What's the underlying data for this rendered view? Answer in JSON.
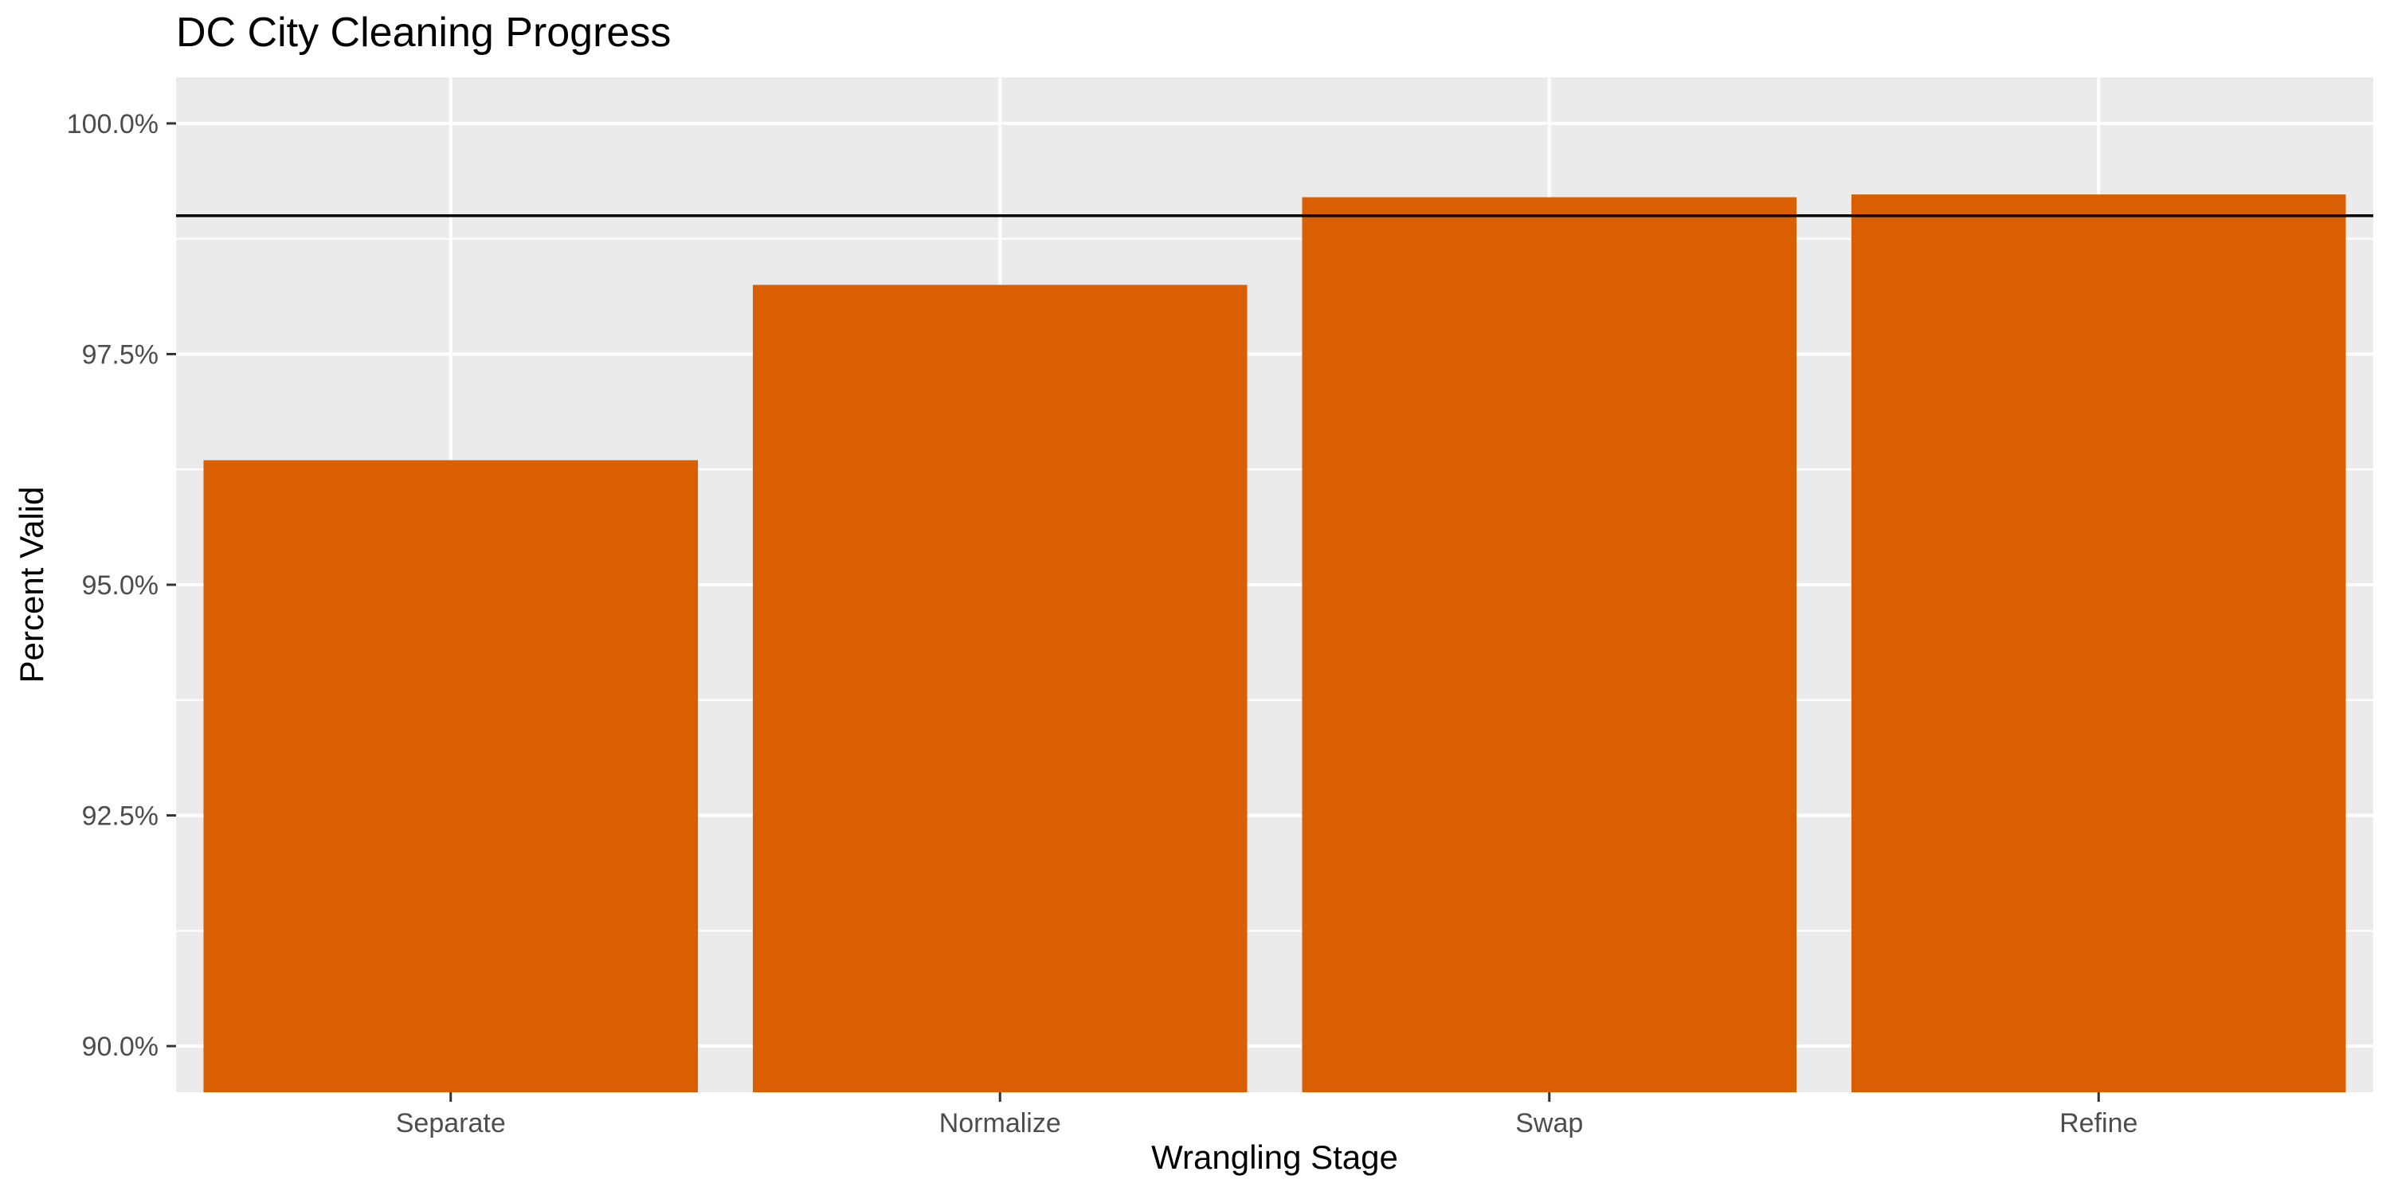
{
  "chart_data": {
    "type": "bar",
    "title": "DC City Cleaning Progress",
    "xlabel": "Wrangling Stage",
    "ylabel": "Percent Valid",
    "categories": [
      "Separate",
      "Normalize",
      "Swap",
      "Refine"
    ],
    "values": [
      96.35,
      98.25,
      99.2,
      99.23
    ],
    "ylim": [
      89.5,
      100.5
    ],
    "yticks": [
      90.0,
      92.5,
      95.0,
      97.5,
      100.0
    ],
    "ytick_labels": [
      "90.0%",
      "92.5%",
      "95.0%",
      "97.5%",
      "100.0%"
    ],
    "reference_line": 99.0,
    "grid": true,
    "bar_color": "#D95F02",
    "panel_color": "#EBEBEB",
    "grid_color": "#FFFFFF",
    "reference_line_color": "#000000"
  }
}
